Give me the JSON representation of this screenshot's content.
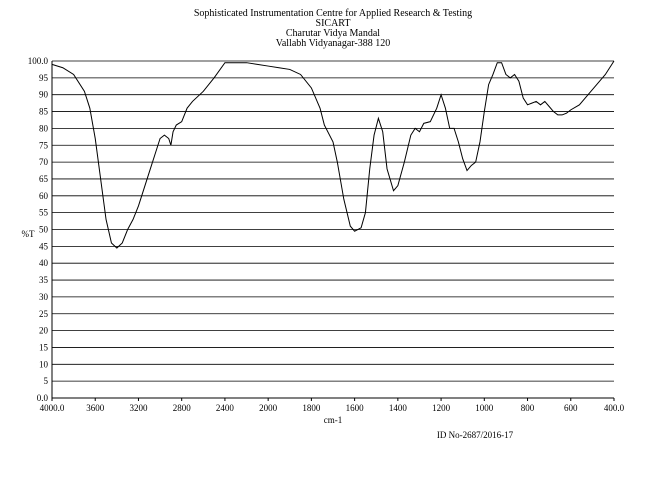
{
  "chart_data": {
    "type": "line",
    "title_lines": [
      "Sophisticated Instrumentation Centre for Applied Research & Testing",
      "SICART",
      "Charutar Vidya Mandal",
      "Vallabh Vidyanagar-388 120"
    ],
    "x_label": "cm-1",
    "y_label": "%T",
    "footer": "ID No-2687/2016-17",
    "xlim": [
      4000,
      400
    ],
    "x_scale_break": 2000,
    "x_scale_factor": 2,
    "ylim": [
      0,
      100
    ],
    "grid": true,
    "color": "#000000",
    "yticks": [
      {
        "value": 100,
        "label": "100.0"
      },
      95,
      90,
      85,
      80,
      75,
      70,
      65,
      60,
      55,
      50,
      45,
      40,
      35,
      30,
      25,
      20,
      15,
      10,
      5,
      {
        "value": 0,
        "label": "0.0"
      }
    ],
    "xticks": [
      {
        "value": 4000,
        "label": "4000.0"
      },
      3600,
      3200,
      2800,
      2400,
      2000,
      1800,
      1600,
      1400,
      1200,
      1000,
      800,
      600,
      {
        "value": 400,
        "label": "400.0"
      }
    ],
    "x": [
      4000,
      3900,
      3800,
      3700,
      3650,
      3600,
      3550,
      3500,
      3450,
      3400,
      3350,
      3300,
      3250,
      3200,
      3150,
      3100,
      3050,
      3000,
      2960,
      2920,
      2900,
      2880,
      2850,
      2800,
      2750,
      2700,
      2600,
      2500,
      2400,
      2300,
      2200,
      2100,
      2000,
      1950,
      1900,
      1850,
      1800,
      1760,
      1740,
      1700,
      1680,
      1650,
      1620,
      1600,
      1570,
      1550,
      1530,
      1510,
      1490,
      1470,
      1450,
      1420,
      1400,
      1370,
      1340,
      1320,
      1300,
      1280,
      1250,
      1220,
      1200,
      1180,
      1160,
      1140,
      1120,
      1100,
      1080,
      1060,
      1040,
      1020,
      1000,
      980,
      960,
      940,
      920,
      900,
      880,
      860,
      840,
      820,
      800,
      780,
      760,
      740,
      720,
      700,
      680,
      660,
      640,
      620,
      600,
      560,
      520,
      480,
      440,
      400
    ],
    "values": [
      99,
      98,
      96,
      91,
      86,
      77,
      65,
      53,
      46,
      44.5,
      46,
      50,
      53,
      57,
      62,
      67,
      72,
      77,
      78,
      77,
      75,
      79,
      81,
      82,
      86,
      88,
      91,
      95,
      99.5,
      99.5,
      99.5,
      99,
      98.5,
      98,
      97.5,
      96,
      92,
      86,
      81,
      76,
      70,
      59,
      51,
      49.5,
      50.5,
      55,
      68,
      78,
      83,
      79,
      68,
      61.5,
      63,
      70,
      78,
      80,
      79,
      81.5,
      82,
      86,
      90,
      86,
      80,
      80,
      76,
      71,
      67.5,
      69,
      70,
      76,
      85,
      93,
      96,
      99.5,
      99.5,
      96,
      95,
      96,
      94,
      89,
      87,
      87.5,
      88,
      87,
      88,
      86.5,
      85,
      84,
      84,
      84.5,
      85.5,
      87,
      90,
      93,
      96,
      100
    ]
  }
}
